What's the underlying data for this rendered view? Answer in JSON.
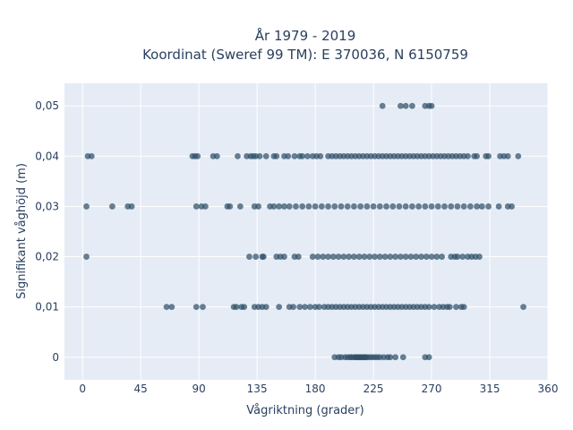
{
  "chart_data": {
    "type": "scatter",
    "title_line1": "År 1979 - 2019",
    "title_line2": "Koordinat (Sweref 99 TM): E 370036, N 6150759",
    "xlabel": "Vågriktning (grader)",
    "ylabel": "Signifikant våghöjd (m)",
    "xlim": [
      -14,
      360
    ],
    "ylim": [
      -0.0045,
      0.0545
    ],
    "x_ticks": [
      0,
      45,
      90,
      135,
      180,
      225,
      270,
      315,
      360
    ],
    "x_tick_labels": [
      "0",
      "45",
      "90",
      "135",
      "180",
      "225",
      "270",
      "315",
      "360"
    ],
    "y_ticks": [
      0,
      0.01,
      0.02,
      0.03,
      0.04,
      0.05
    ],
    "y_tick_labels": [
      "0",
      "0,01",
      "0,02",
      "0,03",
      "0,04",
      "0,05"
    ],
    "grid": true,
    "background_color": "#e5ecf6",
    "marker_color": "#2f5068",
    "points": {
      "0": [
        195,
        198,
        200,
        203,
        205,
        207,
        208,
        210,
        211,
        212,
        213,
        214,
        215,
        216,
        217,
        218,
        219,
        220,
        222,
        224,
        226,
        228,
        230,
        233,
        236,
        238,
        242,
        248,
        265,
        268
      ],
      "0.01": [
        65,
        69,
        88,
        93,
        117,
        119,
        123,
        125,
        133,
        136,
        139,
        142,
        152,
        160,
        163,
        168,
        172,
        176,
        180,
        183,
        187,
        190,
        193,
        196,
        199,
        202,
        205,
        208,
        211,
        214,
        217,
        220,
        223,
        226,
        229,
        232,
        235,
        238,
        241,
        244,
        247,
        250,
        253,
        256,
        259,
        262,
        265,
        268,
        272,
        276,
        279,
        282,
        284,
        289,
        293,
        295,
        341
      ],
      "0.02": [
        3,
        129,
        134,
        139,
        140,
        150,
        153,
        156,
        164,
        167,
        178,
        182,
        186,
        190,
        194,
        198,
        202,
        206,
        210,
        214,
        218,
        222,
        226,
        230,
        234,
        238,
        242,
        246,
        250,
        254,
        258,
        262,
        266,
        270,
        274,
        278,
        285,
        288,
        290,
        294,
        298,
        301,
        304,
        307
      ],
      "0.03": [
        3,
        23,
        35,
        38,
        88,
        92,
        95,
        112,
        114,
        122,
        133,
        136,
        145,
        148,
        152,
        156,
        160,
        165,
        170,
        175,
        180,
        185,
        190,
        195,
        200,
        205,
        210,
        215,
        220,
        225,
        230,
        235,
        240,
        245,
        250,
        255,
        260,
        265,
        270,
        275,
        280,
        285,
        290,
        295,
        300,
        305,
        309,
        314,
        322,
        329,
        332
      ],
      "0.04": [
        4,
        7,
        85,
        87,
        89,
        101,
        104,
        120,
        127,
        130,
        132,
        134,
        137,
        142,
        148,
        150,
        156,
        159,
        164,
        168,
        170,
        174,
        178,
        181,
        184,
        190,
        193,
        196,
        199,
        202,
        205,
        208,
        211,
        214,
        217,
        220,
        223,
        226,
        229,
        232,
        235,
        238,
        241,
        244,
        247,
        250,
        253,
        256,
        259,
        262,
        265,
        268,
        271,
        274,
        277,
        280,
        283,
        286,
        289,
        292,
        295,
        298,
        303,
        305,
        312,
        314,
        323,
        326,
        329,
        337
      ],
      "0.05": [
        232,
        246,
        250,
        255,
        265,
        268,
        270
      ]
    }
  }
}
